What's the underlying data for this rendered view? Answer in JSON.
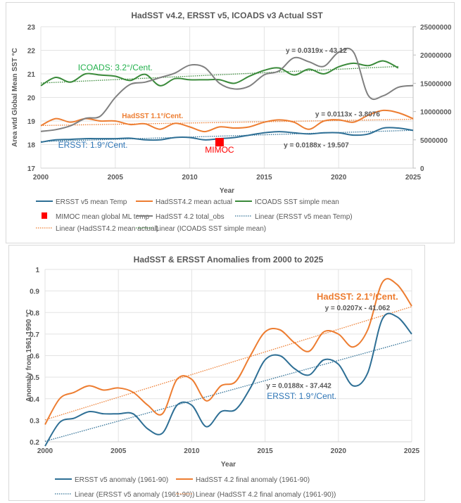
{
  "chart_data": [
    {
      "type": "line",
      "title": "HadSST v4.2, ERSST v5, ICOADS v3 Actual SST",
      "xlabel": "Year",
      "ylabel": "Area wtd Global Mean SST °C",
      "y2label": "",
      "xlim": [
        2000,
        2025
      ],
      "ylim": [
        17,
        23
      ],
      "y2lim": [
        0,
        25000000
      ],
      "x_ticks": [
        "2000",
        "2005",
        "2010",
        "2015",
        "2020",
        "2025"
      ],
      "y_ticks": [
        "17",
        "18",
        "19",
        "20",
        "21",
        "22",
        "23"
      ],
      "y2_ticks": [
        "0",
        "5000000",
        "10000000",
        "15000000",
        "20000000",
        "25000000"
      ],
      "grid": true,
      "legend_position": "bottom",
      "x": [
        2000,
        2001,
        2002,
        2003,
        2004,
        2005,
        2006,
        2007,
        2008,
        2009,
        2010,
        2011,
        2012,
        2013,
        2014,
        2015,
        2016,
        2017,
        2018,
        2019,
        2020,
        2021,
        2022,
        2023,
        2024,
        2025
      ],
      "series": [
        {
          "name": "ERSST v5 mean Temp",
          "color": "#2e6f95",
          "axis": "left",
          "style": "solid",
          "values": [
            18.1,
            18.2,
            18.22,
            18.25,
            18.25,
            18.25,
            18.27,
            18.2,
            18.2,
            18.3,
            18.3,
            18.2,
            18.25,
            18.3,
            18.4,
            18.5,
            18.55,
            18.5,
            18.45,
            18.5,
            18.5,
            18.4,
            18.45,
            18.7,
            18.7,
            18.6
          ]
        },
        {
          "name": "HadSST4.2 mean actual",
          "color": "#ed7d31",
          "axis": "left",
          "style": "solid",
          "values": [
            18.8,
            19.1,
            18.95,
            19.1,
            19.0,
            19.0,
            18.85,
            18.88,
            18.65,
            18.9,
            18.75,
            18.55,
            18.75,
            18.7,
            18.75,
            18.95,
            19.05,
            18.95,
            18.65,
            19.0,
            19.05,
            18.95,
            19.25,
            19.45,
            19.35,
            19.1
          ]
        },
        {
          "name": "ICOADS SST simple mean",
          "color": "#3a8a3a",
          "axis": "left",
          "style": "solid",
          "values": [
            20.5,
            20.85,
            20.65,
            21.0,
            20.95,
            20.9,
            20.72,
            20.98,
            20.5,
            20.8,
            20.75,
            20.75,
            20.75,
            20.6,
            20.9,
            21.15,
            21.25,
            20.95,
            21.2,
            21.0,
            21.3,
            21.45,
            21.35,
            21.55,
            21.25,
            null
          ]
        },
        {
          "name": "MIMOC mean global ML temp",
          "color": "#ff0000",
          "axis": "left",
          "style": "marker",
          "points": [
            {
              "x": 2012,
              "y": 18.1
            }
          ]
        },
        {
          "name": "HadSST 4.2 total_obs",
          "color": "#808080",
          "axis": "right",
          "style": "solid",
          "values": [
            6500000,
            6800000,
            7500000,
            8800000,
            9200000,
            12500000,
            14800000,
            15200000,
            16000000,
            16800000,
            18200000,
            17800000,
            15000000,
            14000000,
            14500000,
            16500000,
            17200000,
            19500000,
            18800000,
            18000000,
            20500000,
            20500000,
            12800000,
            12800000,
            14300000,
            14600000
          ]
        },
        {
          "name": "Linear (ERSST v5 mean Temp)",
          "color": "#2e6f95",
          "axis": "left",
          "style": "dotted",
          "trend_of": 0
        },
        {
          "name": "Linear (HadSST4.2 mean actual)",
          "color": "#ed7d31",
          "axis": "left",
          "style": "dotted",
          "trend_of": 1
        },
        {
          "name": "Linear (ICOADS SST simple mean)",
          "color": "#3a8a3a",
          "axis": "left",
          "style": "dotted",
          "trend_of": 2
        }
      ],
      "annotations": [
        {
          "text": "ICOADS: 3.2°/Cent.",
          "color": "#22b14c",
          "x": 2005,
          "y": 21.15
        },
        {
          "text": "HadSST 1.1°/Cent.",
          "color": "#ed7d31",
          "x": 2007.5,
          "y": 19.12,
          "bold": true
        },
        {
          "text": "ERSST: 1.9°/Cent.",
          "color": "#2e75b6",
          "x": 2003.5,
          "y": 17.87
        },
        {
          "text": "MIMOC",
          "color": "#ff0000",
          "x": 2012,
          "y": 17.65
        },
        {
          "text": "y = 0.0319x - 43.12",
          "color": "#595959",
          "x": 2018.5,
          "y": 21.9,
          "bold": true
        },
        {
          "text": "y = 0.0113x - 3.8076",
          "color": "#595959",
          "x": 2020.6,
          "y": 19.2,
          "bold": true
        },
        {
          "text": "y = 0.0188x - 19.507",
          "color": "#595959",
          "x": 2018.5,
          "y": 17.88,
          "bold": true
        }
      ]
    },
    {
      "type": "line",
      "title": "HadSST & ERSST Anomalies from 2000 to 2025",
      "xlabel": "Year",
      "ylabel": "Anomaly from 1961-1990 °C",
      "xlim": [
        2000,
        2025
      ],
      "ylim": [
        0.2,
        1.0
      ],
      "x_ticks": [
        "2000",
        "2005",
        "2010",
        "2015",
        "2020",
        "2025"
      ],
      "y_ticks": [
        "0.2",
        "0.3",
        "0.4",
        "0.5",
        "0.6",
        "0.7",
        "0.8",
        "0.9",
        "1"
      ],
      "grid": true,
      "legend_position": "bottom",
      "x": [
        2000,
        2001,
        2002,
        2003,
        2004,
        2005,
        2006,
        2007,
        2008,
        2009,
        2010,
        2011,
        2012,
        2013,
        2014,
        2015,
        2016,
        2017,
        2018,
        2019,
        2020,
        2021,
        2022,
        2023,
        2024,
        2025
      ],
      "series": [
        {
          "name": "ERSST v5 anomaly (1961-90)",
          "color": "#2e6f95",
          "style": "solid",
          "values": [
            0.18,
            0.29,
            0.31,
            0.34,
            0.33,
            0.33,
            0.33,
            0.26,
            0.24,
            0.37,
            0.37,
            0.27,
            0.34,
            0.35,
            0.45,
            0.58,
            0.6,
            0.54,
            0.51,
            0.58,
            0.56,
            0.46,
            0.52,
            0.77,
            0.78,
            0.7
          ]
        },
        {
          "name": "HadSST 4.2 final anomaly (1961-90)",
          "color": "#ed7d31",
          "style": "solid",
          "values": [
            0.28,
            0.4,
            0.43,
            0.46,
            0.44,
            0.45,
            0.43,
            0.37,
            0.33,
            0.49,
            0.49,
            0.39,
            0.46,
            0.48,
            0.6,
            0.71,
            0.72,
            0.66,
            0.62,
            0.71,
            0.7,
            0.64,
            0.72,
            0.94,
            0.93,
            0.83
          ]
        },
        {
          "name": "Linear (ERSST v5 anomaly (1961-90))",
          "color": "#2e6f95",
          "style": "dotted",
          "trend_of": 0
        },
        {
          "name": "Linear (HadSST 4.2 final anomaly (1961-90))",
          "color": "#ed7d31",
          "style": "dotted",
          "trend_of": 1
        }
      ],
      "annotations": [
        {
          "text": "HadSST: 2.1°/Cent.",
          "color": "#ed7d31",
          "x": 2021.3,
          "y": 0.86,
          "bold": true,
          "size": 13
        },
        {
          "text": "y = 0.0207x - 41.062",
          "color": "#595959",
          "x": 2021.3,
          "y": 0.81,
          "bold": true
        },
        {
          "text": "y = 0.0188x - 37.442",
          "color": "#595959",
          "x": 2017.3,
          "y": 0.45,
          "bold": true
        },
        {
          "text": "ERSST: 1.9°/Cent.",
          "color": "#2e75b6",
          "x": 2017.5,
          "y": 0.4,
          "size": 12
        }
      ]
    }
  ]
}
